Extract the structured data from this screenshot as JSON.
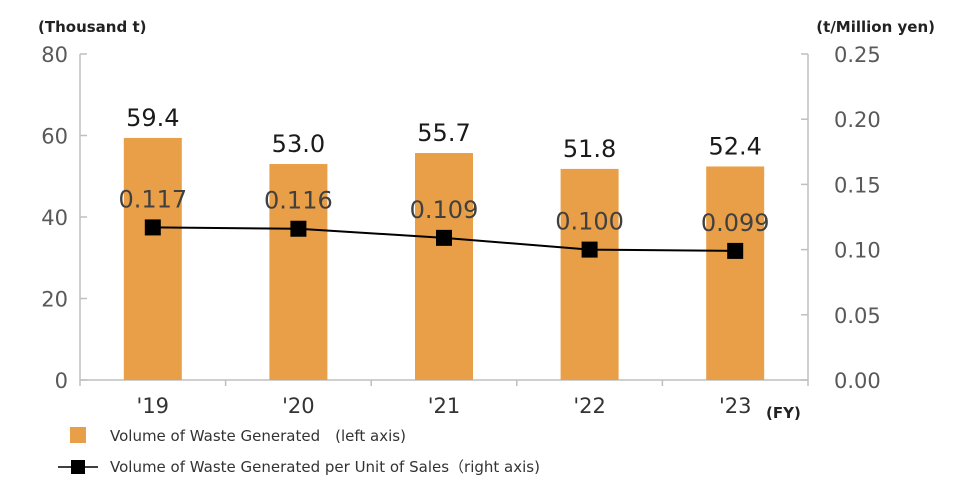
{
  "chart_data": {
    "type": "bar",
    "categories": [
      "'19",
      "'20",
      "'21",
      "'22",
      "'23"
    ],
    "series": [
      {
        "name": "Volume of Waste Generated　(left axis)",
        "type": "bar",
        "axis": "left",
        "values": [
          59.4,
          53.0,
          55.7,
          51.8,
          52.4
        ],
        "labels": [
          "59.4",
          "53.0",
          "55.7",
          "51.8",
          "52.4"
        ],
        "color": "#E99F48"
      },
      {
        "name": "Volume of Waste Generated per Unit of Sales（right axis)",
        "type": "line",
        "axis": "right",
        "values": [
          0.117,
          0.116,
          0.109,
          0.1,
          0.099
        ],
        "labels": [
          "0.117",
          "0.116",
          "0.109",
          "0.100",
          "0.099"
        ],
        "color": "#000000",
        "marker": "square"
      }
    ],
    "y_left": {
      "unit": "(Thousand t)",
      "range": [
        0,
        80
      ],
      "ticks": [
        "0",
        "20",
        "40",
        "60",
        "80"
      ]
    },
    "y_right": {
      "unit": "(t/Million yen)",
      "range": [
        0,
        0.25
      ],
      "ticks": [
        "0.00",
        "0.05",
        "0.10",
        "0.15",
        "0.20",
        "0.25"
      ]
    },
    "x_unit": "(FY)",
    "grid": false,
    "legend": "bottom-left"
  }
}
